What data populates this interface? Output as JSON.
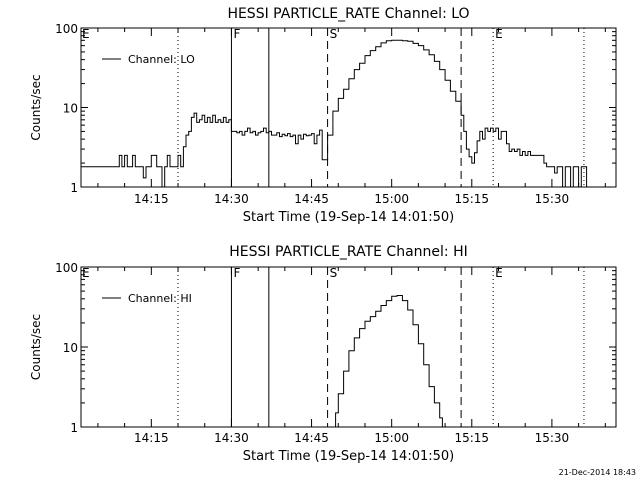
{
  "footer": {
    "timestamp": "21-Dec-2014 18:43"
  },
  "chart_data": [
    {
      "type": "line",
      "title": "HESSI PARTICLE_RATE Channel: LO",
      "xlabel": "Start Time (19-Sep-14 14:01:50)",
      "ylabel": "Counts/sec",
      "yscale": "log",
      "ylim": [
        1,
        100
      ],
      "xlim": [
        "14:01:50",
        "15:42:00"
      ],
      "x_ticks": [
        "14:15",
        "14:30",
        "14:45",
        "15:00",
        "15:15",
        "15:30"
      ],
      "y_ticks": [
        "1",
        "10",
        "100"
      ],
      "grid": false,
      "legend": "top-left",
      "series": [
        {
          "name": "Channel: LO",
          "x": [
            "14:01:50",
            "14:03",
            "14:08",
            "14:09",
            "14:09:30",
            "14:10",
            "14:10:30",
            "14:11",
            "14:11:30",
            "14:12",
            "14:12:30",
            "14:13",
            "14:13:30",
            "14:14",
            "14:14:30",
            "14:15",
            "14:16",
            "14:17",
            "14:17:30",
            "14:18",
            "14:18:30",
            "14:19",
            "14:19:30",
            "14:20",
            "14:20:30",
            "14:21",
            "14:21:30",
            "14:22",
            "14:22:30",
            "14:23",
            "14:23:30",
            "14:24",
            "14:24:30",
            "14:25",
            "14:25:30",
            "14:26",
            "14:26:30",
            "14:27",
            "14:27:30",
            "14:28",
            "14:28:30",
            "14:29",
            "14:29:30",
            "14:30",
            "14:30:30",
            "14:31",
            "14:31:30",
            "14:32",
            "14:32:30",
            "14:33",
            "14:33:30",
            "14:34",
            "14:34:30",
            "14:35",
            "14:35:30",
            "14:36",
            "14:36:30",
            "14:37",
            "14:37:30",
            "14:38",
            "14:38:30",
            "14:39",
            "14:39:30",
            "14:40",
            "14:40:30",
            "14:41",
            "14:41:30",
            "14:42",
            "14:42:30",
            "14:43",
            "14:43:30",
            "14:44",
            "14:44:30",
            "14:45",
            "14:45:30",
            "14:46",
            "14:46:30",
            "14:47",
            "14:48",
            "14:49",
            "14:50",
            "14:51",
            "14:52",
            "14:53",
            "14:54",
            "14:55",
            "14:56",
            "14:57",
            "14:58",
            "14:59",
            "15:00",
            "15:01",
            "15:02",
            "15:03",
            "15:04",
            "15:05",
            "15:06",
            "15:07",
            "15:08",
            "15:09",
            "15:10",
            "15:11",
            "15:12",
            "15:13",
            "15:13:30",
            "15:14",
            "15:14:30",
            "15:15",
            "15:15:30",
            "15:16",
            "15:16:30",
            "15:17",
            "15:17:30",
            "15:18",
            "15:18:30",
            "15:19",
            "15:19:30",
            "15:20",
            "15:20:30",
            "15:21",
            "15:21:30",
            "15:22",
            "15:22:30",
            "15:23",
            "15:23:30",
            "15:24",
            "15:24:30",
            "15:25",
            "15:25:30",
            "15:26",
            "15:26:30",
            "15:27",
            "15:27:30",
            "15:28",
            "15:28:30",
            "15:29",
            "15:29:30",
            "15:30",
            "15:30:30",
            "15:31",
            "15:31:30",
            "15:32",
            "15:32:30",
            "15:33",
            "15:33:30",
            "15:34",
            "15:34:30",
            "15:35",
            "15:35:30",
            "15:36",
            "15:36:30"
          ],
          "y": [
            1.8,
            1.8,
            1.8,
            2.5,
            1.8,
            2.5,
            1.8,
            1.8,
            2.5,
            1.8,
            1.8,
            1.8,
            1.3,
            1.8,
            1.8,
            2.5,
            1.8,
            1.0,
            1.8,
            2.5,
            1.8,
            1.8,
            1.8,
            2.5,
            1.8,
            3.2,
            4.5,
            5.0,
            7.5,
            8.5,
            6.5,
            7.0,
            8.0,
            6.5,
            7.5,
            6.5,
            8.0,
            6.5,
            7.0,
            6.5,
            7.5,
            6.5,
            7.0,
            5.0,
            5.0,
            4.8,
            5.0,
            4.5,
            5.0,
            5.5,
            4.8,
            5.0,
            4.5,
            4.8,
            5.0,
            5.5,
            4.8,
            5.0,
            4.5,
            4.5,
            4.8,
            4.3,
            4.6,
            4.4,
            4.7,
            4.3,
            4.5,
            3.5,
            4.5,
            4.0,
            4.6,
            4.4,
            4.5,
            4.7,
            3.5,
            4.5,
            5.2,
            2.2,
            4.5,
            9.0,
            13,
            17,
            23,
            30,
            36,
            45,
            52,
            58,
            65,
            69,
            70,
            70,
            69,
            68,
            64,
            60,
            53,
            46,
            38,
            30,
            22,
            16,
            12,
            8,
            5,
            3,
            2.4,
            2.0,
            2.7,
            3.8,
            5.0,
            4.0,
            5.5,
            5.0,
            5.5,
            5.0,
            5.5,
            4.0,
            5.0,
            5.0,
            3.5,
            2.8,
            3.0,
            2.8,
            3.0,
            2.5,
            2.8,
            2.5,
            2.8,
            2.5,
            2.5,
            2.5,
            2.5,
            2.5,
            2.0,
            1.8,
            1.8,
            1.8,
            1.5,
            1.8,
            1.8,
            1.0,
            1.8,
            1.8,
            1.0,
            1.8,
            1.8,
            1.0,
            1.8,
            1.8,
            1.0
          ]
        }
      ],
      "vertical_lines": [
        {
          "x": "14:20",
          "label": "",
          "style": "dotted"
        },
        {
          "x": "14:30",
          "label": "F",
          "style": "solid"
        },
        {
          "x": "14:37",
          "label": "",
          "style": "solid"
        },
        {
          "x": "14:48",
          "label": "S",
          "style": "dashed"
        },
        {
          "x": "15:13",
          "label": "",
          "style": "dashed"
        },
        {
          "x": "15:19",
          "label": "E",
          "style": "dotted"
        },
        {
          "x": "15:36",
          "label": "",
          "style": "dotted"
        }
      ],
      "corner_label": "E"
    },
    {
      "type": "line",
      "title": "HESSI PARTICLE_RATE Channel: HI",
      "xlabel": "Start Time (19-Sep-14 14:01:50)",
      "ylabel": "Counts/sec",
      "yscale": "log",
      "ylim": [
        1,
        100
      ],
      "xlim": [
        "14:01:50",
        "15:42:00"
      ],
      "x_ticks": [
        "14:15",
        "14:30",
        "14:45",
        "15:00",
        "15:15",
        "15:30"
      ],
      "y_ticks": [
        "1",
        "10",
        "100"
      ],
      "grid": false,
      "legend": "top-left",
      "series": [
        {
          "name": "Channel: HI",
          "x": [
            "14:49:00",
            "14:49:30",
            "14:50",
            "14:51",
            "14:52",
            "14:53",
            "14:54",
            "14:55",
            "14:56",
            "14:57",
            "14:58",
            "14:59",
            "15:00",
            "15:01",
            "15:02",
            "15:03",
            "15:04",
            "15:05",
            "15:06",
            "15:07",
            "15:08",
            "15:09",
            "15:09:30"
          ],
          "y": [
            1.0,
            1.5,
            2.6,
            5.0,
            9,
            13,
            17,
            21,
            24,
            28,
            33,
            38,
            43,
            44,
            38,
            29,
            19,
            11,
            6,
            3.2,
            2.0,
            1.3,
            1.0
          ]
        }
      ],
      "vertical_lines": [
        {
          "x": "14:20",
          "label": "",
          "style": "dotted"
        },
        {
          "x": "14:30",
          "label": "F",
          "style": "solid"
        },
        {
          "x": "14:37",
          "label": "",
          "style": "solid"
        },
        {
          "x": "14:48",
          "label": "S",
          "style": "dashed"
        },
        {
          "x": "15:13",
          "label": "",
          "style": "dashed"
        },
        {
          "x": "15:19",
          "label": "E",
          "style": "dotted"
        },
        {
          "x": "15:36",
          "label": "",
          "style": "dotted"
        }
      ],
      "corner_label": "E"
    }
  ]
}
